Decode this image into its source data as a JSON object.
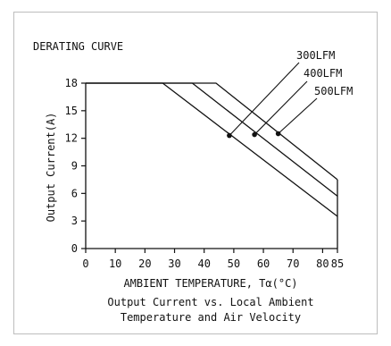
{
  "chart_data": {
    "type": "line",
    "title": "DERATING CURVE",
    "xlabel": "AMBIENT TEMPERATURE, Tα(°C)",
    "ylabel": "Output Current(A)",
    "xlim": [
      0,
      85
    ],
    "ylim": [
      0,
      18
    ],
    "xticks": [
      "0",
      "10",
      "20",
      "30",
      "40",
      "50",
      "60",
      "70",
      "80",
      "85"
    ],
    "yticks": [
      "0",
      "3",
      "6",
      "9",
      "12",
      "15",
      "18"
    ],
    "grid": false,
    "legend": "labels with leader lines, top-right",
    "series": [
      {
        "name": "300LFM",
        "x": [
          0,
          26,
          85
        ],
        "y": [
          18,
          18,
          3.5
        ],
        "marker_at": [
          48.5,
          12.3
        ]
      },
      {
        "name": "400LFM",
        "x": [
          0,
          36,
          85
        ],
        "y": [
          18,
          18,
          5.7
        ],
        "marker_at": [
          57,
          12.4
        ]
      },
      {
        "name": "500LFM",
        "x": [
          0,
          44,
          85
        ],
        "y": [
          18,
          18,
          7.5
        ],
        "marker_at": [
          65,
          12.5
        ]
      }
    ],
    "caption_lines": [
      "Output Current vs. Local Ambient",
      "Temperature and Air Velocity"
    ]
  }
}
